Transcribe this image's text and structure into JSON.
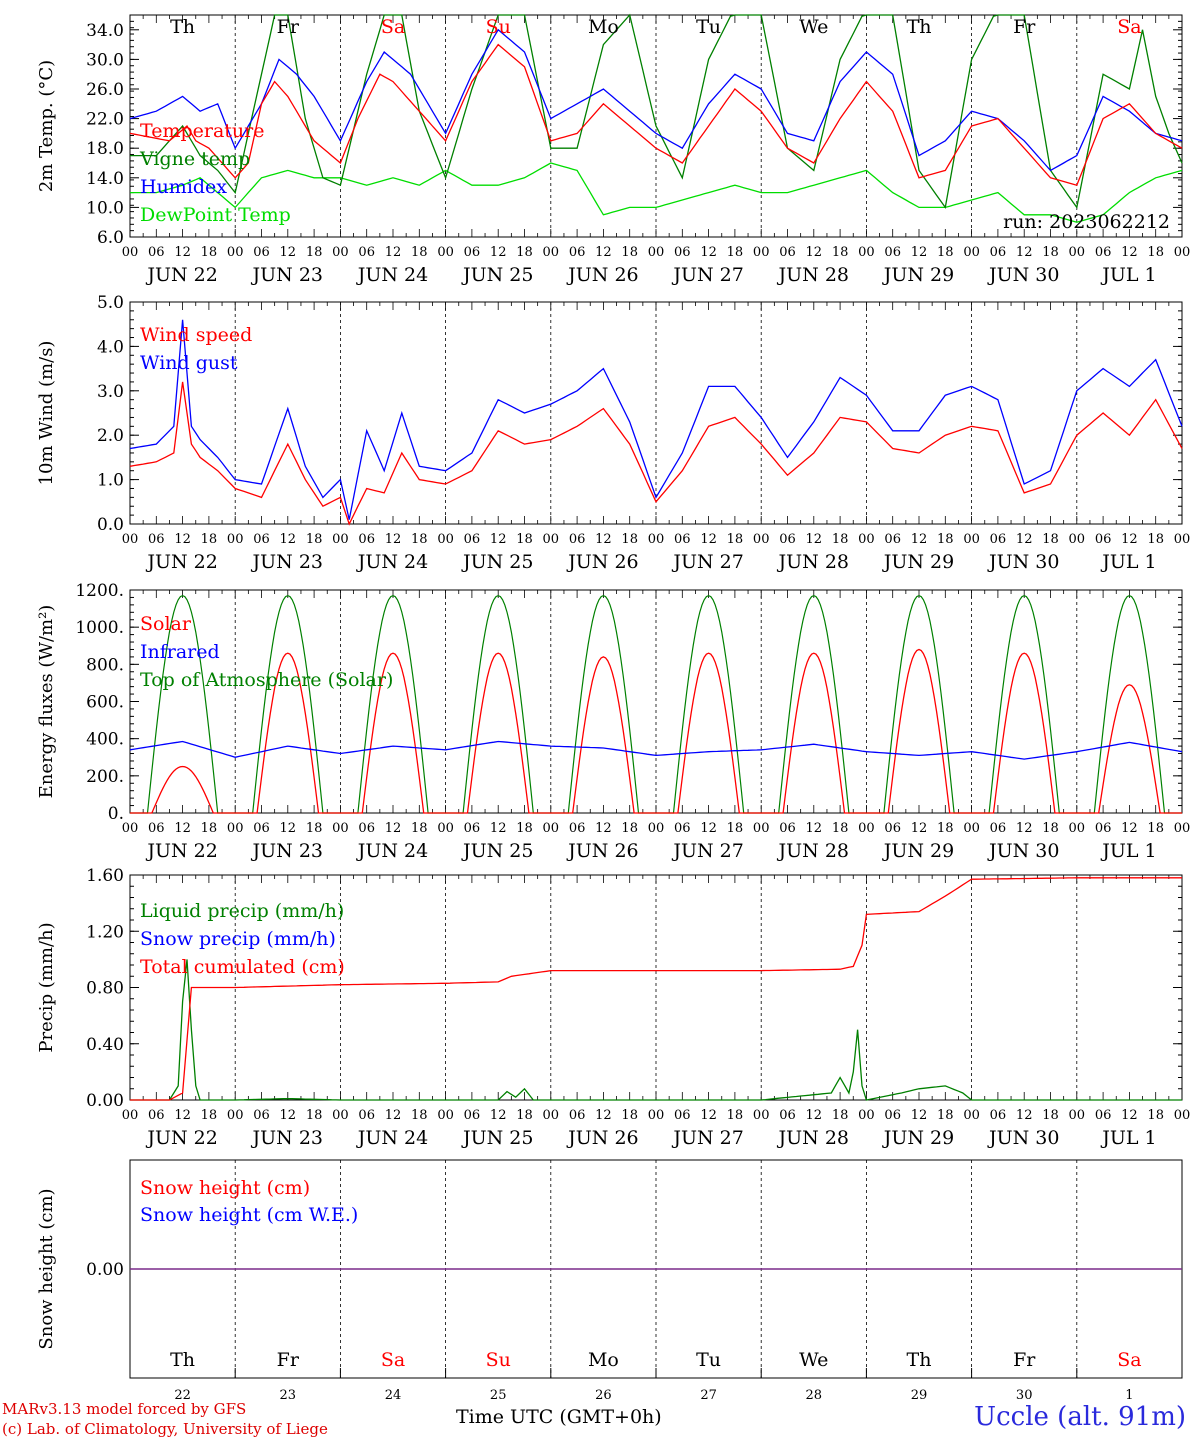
{
  "chart_data": [
    {
      "type": "line",
      "ylabel": "2m Temp. (°C)",
      "ylim": [
        6,
        36
      ],
      "yticks": [
        "6.0",
        "10.0",
        "14.0",
        "18.0",
        "22.0",
        "26.0",
        "30.0",
        "34.0"
      ],
      "run_label": "run: 2023062212",
      "legend": [
        {
          "name": "Temperature",
          "color": "#ff0000"
        },
        {
          "name": "Vigne temp",
          "color": "#008000"
        },
        {
          "name": "Humidex",
          "color": "#0000ff"
        },
        {
          "name": "DewPoint Temp",
          "color": "#00dd00"
        }
      ],
      "series": [
        {
          "name": "Temperature",
          "color": "#ff0000",
          "x": [
            0,
            9,
            13,
            15,
            18,
            24,
            27,
            30,
            33,
            36,
            42,
            48,
            52,
            57,
            60,
            66,
            72,
            78,
            84,
            90,
            96,
            102,
            108,
            114,
            120,
            126,
            132,
            138,
            144,
            150,
            156,
            162,
            168,
            174,
            180,
            186,
            192,
            198,
            204,
            210,
            216,
            222,
            228,
            234,
            240
          ],
          "y": [
            20,
            19,
            21,
            19,
            18,
            14,
            16,
            24,
            27,
            25,
            19,
            16,
            22,
            28,
            27,
            23,
            19,
            27,
            32,
            29,
            19,
            20,
            24,
            21,
            18,
            16,
            21,
            26,
            23,
            18,
            16,
            22,
            27,
            23,
            14,
            15,
            21,
            22,
            18,
            14,
            13,
            22,
            24,
            20,
            18
          ]
        },
        {
          "name": "Vigne temp",
          "color": "#008000",
          "x": [
            0,
            6,
            12,
            16,
            20,
            24,
            30,
            33,
            36,
            40,
            44,
            48,
            54,
            58,
            62,
            66,
            72,
            78,
            84,
            90,
            96,
            102,
            108,
            114,
            120,
            126,
            132,
            138,
            144,
            150,
            156,
            162,
            168,
            174,
            180,
            186,
            192,
            198,
            204,
            210,
            216,
            222,
            228,
            231,
            234,
            237,
            240
          ],
          "y": [
            17,
            17,
            21,
            17,
            15,
            12,
            28,
            36,
            36,
            22,
            14,
            13,
            28,
            36,
            36,
            23,
            14,
            26,
            36,
            36,
            18,
            18,
            32,
            36,
            21,
            14,
            30,
            37,
            36,
            18,
            15,
            30,
            37,
            36,
            15,
            10,
            30,
            37,
            36,
            15,
            10,
            28,
            26,
            34,
            25,
            20,
            16
          ]
        },
        {
          "name": "Humidex",
          "color": "#0000ff",
          "x": [
            0,
            6,
            12,
            16,
            20,
            24,
            30,
            34,
            38,
            42,
            48,
            54,
            58,
            64,
            68,
            72,
            78,
            84,
            90,
            96,
            102,
            108,
            114,
            120,
            126,
            132,
            138,
            144,
            150,
            156,
            162,
            168,
            174,
            180,
            186,
            192,
            198,
            204,
            210,
            216,
            222,
            228,
            234,
            240
          ],
          "y": [
            22,
            23,
            25,
            23,
            24,
            18,
            24,
            30,
            28,
            25,
            19,
            27,
            31,
            28,
            24,
            20,
            28,
            34,
            31,
            22,
            24,
            26,
            23,
            20,
            18,
            24,
            28,
            26,
            20,
            19,
            27,
            31,
            28,
            17,
            19,
            23,
            22,
            19,
            15,
            17,
            25,
            23,
            20,
            19
          ]
        },
        {
          "name": "DewPoint Temp",
          "color": "#00dd00",
          "x": [
            0,
            6,
            12,
            16,
            20,
            24,
            30,
            36,
            42,
            48,
            54,
            60,
            66,
            72,
            78,
            84,
            90,
            96,
            102,
            108,
            114,
            120,
            126,
            132,
            138,
            144,
            150,
            156,
            162,
            168,
            174,
            180,
            186,
            192,
            198,
            204,
            210,
            216,
            222,
            228,
            234,
            240
          ],
          "y": [
            12,
            12,
            13,
            14,
            12,
            10,
            14,
            15,
            14,
            14,
            13,
            14,
            13,
            15,
            13,
            13,
            14,
            16,
            15,
            9,
            10,
            10,
            11,
            12,
            13,
            12,
            12,
            13,
            14,
            15,
            12,
            10,
            10,
            11,
            12,
            9,
            9,
            8,
            9,
            12,
            14,
            15
          ]
        }
      ]
    },
    {
      "type": "line",
      "ylabel": "10m Wind (m/s)",
      "ylim": [
        0,
        5
      ],
      "yticks": [
        "0.0",
        "1.0",
        "2.0",
        "3.0",
        "4.0",
        "5.0"
      ],
      "legend": [
        {
          "name": "Wind speed",
          "color": "#ff0000"
        },
        {
          "name": "Wind gust",
          "color": "#0000ff"
        }
      ],
      "series": [
        {
          "name": "Wind speed",
          "color": "#ff0000",
          "x": [
            0,
            6,
            10,
            12,
            14,
            16,
            20,
            24,
            30,
            36,
            40,
            44,
            48,
            50,
            54,
            58,
            62,
            66,
            72,
            78,
            84,
            90,
            96,
            102,
            108,
            114,
            120,
            126,
            132,
            138,
            144,
            150,
            156,
            162,
            168,
            174,
            180,
            186,
            192,
            198,
            204,
            210,
            216,
            222,
            228,
            234,
            240
          ],
          "y": [
            1.3,
            1.4,
            1.6,
            3.2,
            1.8,
            1.5,
            1.2,
            0.8,
            0.6,
            1.8,
            1.0,
            0.4,
            0.6,
            0.0,
            0.8,
            0.7,
            1.6,
            1.0,
            0.9,
            1.2,
            2.1,
            1.8,
            1.9,
            2.2,
            2.6,
            1.8,
            0.5,
            1.2,
            2.2,
            2.4,
            1.8,
            1.1,
            1.6,
            2.4,
            2.3,
            1.7,
            1.6,
            2.0,
            2.2,
            2.1,
            0.7,
            0.9,
            2.0,
            2.5,
            2.0,
            2.8,
            1.7
          ]
        },
        {
          "name": "Wind gust",
          "color": "#0000ff",
          "x": [
            0,
            6,
            10,
            12,
            14,
            16,
            20,
            24,
            30,
            36,
            40,
            44,
            48,
            50,
            54,
            58,
            62,
            66,
            72,
            78,
            84,
            90,
            96,
            102,
            108,
            114,
            120,
            126,
            132,
            138,
            144,
            150,
            156,
            162,
            168,
            174,
            180,
            186,
            192,
            198,
            204,
            210,
            216,
            222,
            228,
            234,
            240
          ],
          "y": [
            1.7,
            1.8,
            2.2,
            4.6,
            2.2,
            1.9,
            1.5,
            1.0,
            0.9,
            2.6,
            1.3,
            0.6,
            1.0,
            0.1,
            2.1,
            1.2,
            2.5,
            1.3,
            1.2,
            1.6,
            2.8,
            2.5,
            2.7,
            3.0,
            3.5,
            2.3,
            0.6,
            1.6,
            3.1,
            3.1,
            2.4,
            1.5,
            2.3,
            3.3,
            2.9,
            2.1,
            2.1,
            2.9,
            3.1,
            2.8,
            0.9,
            1.2,
            3.0,
            3.5,
            3.1,
            3.7,
            2.2
          ]
        }
      ]
    },
    {
      "type": "line",
      "ylabel": "Energy fluxes (W/m²)",
      "ylim": [
        0,
        1200
      ],
      "yticks": [
        "0.",
        "200.",
        "400.",
        "600.",
        "800.",
        "1000.",
        "1200."
      ],
      "legend": [
        {
          "name": "Solar",
          "color": "#ff0000"
        },
        {
          "name": "Infrared",
          "color": "#0000ff"
        },
        {
          "name": "Top of Atmosphere (Solar)",
          "color": "#008000"
        }
      ],
      "series": [
        {
          "name": "Top of Atmosphere (Solar)",
          "color": "#008000",
          "peak": 1170,
          "daylight_utc": [
            4,
            20
          ]
        },
        {
          "name": "Solar",
          "color": "#ff0000",
          "daily_peaks": [
            250,
            860,
            860,
            860,
            840,
            860,
            860,
            880,
            860,
            690
          ]
        },
        {
          "name": "Infrared",
          "color": "#0000ff",
          "x": [
            0,
            12,
            24,
            36,
            48,
            60,
            72,
            84,
            96,
            108,
            120,
            132,
            144,
            156,
            168,
            180,
            192,
            204,
            216,
            228,
            240
          ],
          "y": [
            340,
            385,
            300,
            360,
            320,
            360,
            340,
            385,
            360,
            350,
            310,
            330,
            340,
            370,
            330,
            310,
            330,
            290,
            330,
            380,
            330
          ]
        }
      ]
    },
    {
      "type": "line",
      "ylabel": "Precip (mm/h)",
      "ylim": [
        0,
        1.6
      ],
      "yticks": [
        "0.00",
        "0.40",
        "0.80",
        "1.20",
        "1.60"
      ],
      "legend": [
        {
          "name": "Liquid precip (mm/h)",
          "color": "#008000"
        },
        {
          "name": "Snow precip (mm/h)",
          "color": "#0000ff"
        },
        {
          "name": "Total cumulated (cm)",
          "color": "#ff0000"
        }
      ],
      "series": [
        {
          "name": "Total cumulated (cm)",
          "color": "#ff0000",
          "x": [
            0,
            9,
            12,
            14,
            15,
            24,
            48,
            72,
            84,
            87,
            96,
            108,
            120,
            144,
            162,
            165,
            167,
            168,
            180,
            186,
            192,
            216,
            240
          ],
          "y": [
            0,
            0,
            0.05,
            0.8,
            0.8,
            0.8,
            0.82,
            0.83,
            0.84,
            0.88,
            0.92,
            0.92,
            0.92,
            0.92,
            0.93,
            0.95,
            1.1,
            1.32,
            1.34,
            1.45,
            1.57,
            1.58,
            1.58
          ]
        },
        {
          "name": "Liquid precip (mm/h)",
          "color": "#008000",
          "x": [
            0,
            9,
            11,
            12,
            13,
            14,
            15,
            16,
            24,
            36,
            48,
            84,
            86,
            88,
            90,
            92,
            144,
            160,
            162,
            164,
            165,
            166,
            167,
            168,
            176,
            180,
            186,
            190,
            192,
            240
          ],
          "y": [
            0,
            0,
            0.1,
            0.7,
            1.0,
            0.5,
            0.1,
            0,
            0,
            0.01,
            0,
            0,
            0.06,
            0.02,
            0.08,
            0,
            0,
            0.05,
            0.16,
            0.05,
            0.2,
            0.5,
            0.1,
            0,
            0.05,
            0.08,
            0.1,
            0.05,
            0,
            0
          ]
        }
      ]
    },
    {
      "type": "line",
      "ylabel": "Snow height (cm)",
      "yticks": [
        "0.00"
      ],
      "legend": [
        {
          "name": "Snow height (cm)",
          "color": "#ff0000"
        },
        {
          "name": "Snow height (cm W.E.)",
          "color": "#0000ff"
        }
      ],
      "series": [
        {
          "name": "Snow height (cm)",
          "color": "#ff0000",
          "x": [
            0,
            240
          ],
          "y": [
            0,
            0
          ]
        },
        {
          "name": "Snow height (cm W.E.)",
          "color": "#0000ff",
          "x": [
            0,
            240
          ],
          "y": [
            0,
            0
          ]
        }
      ]
    }
  ],
  "hour_ticks": [
    "00",
    "06",
    "12",
    "18"
  ],
  "date_labels": [
    "JUN 22",
    "JUN 23",
    "JUN 24",
    "JUN 25",
    "JUN 26",
    "JUN 27",
    "JUN 28",
    "JUN 29",
    "JUN 30",
    "JUL  1"
  ],
  "weekdays": [
    {
      "label": "Th",
      "color": "#000000"
    },
    {
      "label": "Fr",
      "color": "#000000"
    },
    {
      "label": "Sa",
      "color": "#ff0000"
    },
    {
      "label": "Su",
      "color": "#ff0000"
    },
    {
      "label": "Mo",
      "color": "#000000"
    },
    {
      "label": "Tu",
      "color": "#000000"
    },
    {
      "label": "We",
      "color": "#000000"
    },
    {
      "label": "Th",
      "color": "#000000"
    },
    {
      "label": "Fr",
      "color": "#000000"
    },
    {
      "label": "Sa",
      "color": "#ff0000"
    }
  ],
  "day_numbers": [
    "22",
    "23",
    "24",
    "25",
    "26",
    "27",
    "28",
    "29",
    "30",
    "1"
  ],
  "footer": {
    "credit_line1": "MARv3.13 model forced by GFS",
    "credit_line2": "(c) Lab. of Climatology, University of Liege",
    "xaxis_title": "Time UTC (GMT+0h)",
    "station": "Uccle (alt. 91m)"
  }
}
